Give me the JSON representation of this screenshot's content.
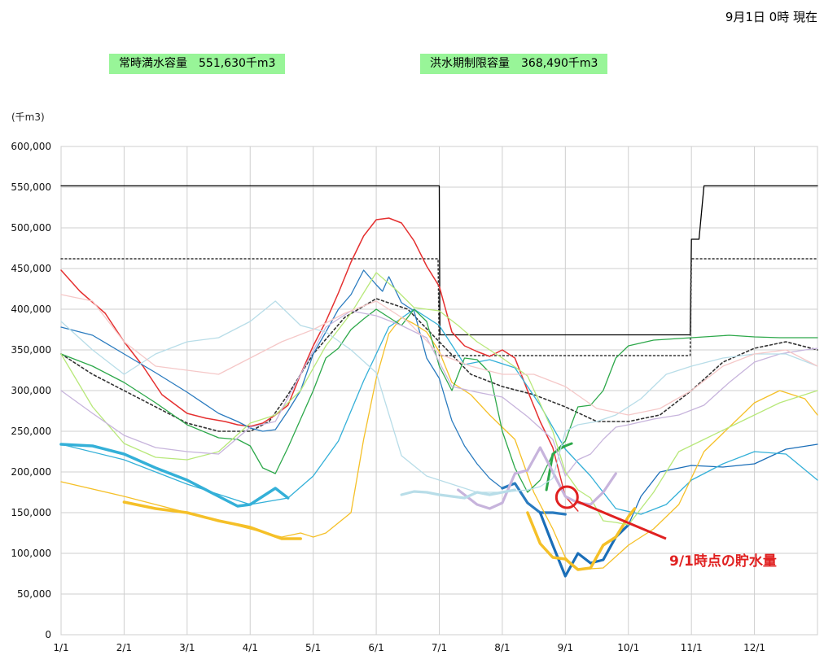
{
  "header": {
    "timestamp": "9月1日 0時 現在",
    "full_capacity": "常時満水容量　551,630千m3",
    "flood_limit": "洪水期制限容量　368,490千m3"
  },
  "chart_data": {
    "type": "line",
    "unit_label": "(千m3)",
    "ylim": [
      0,
      600000
    ],
    "y_ticks": [
      0,
      50000,
      100000,
      150000,
      200000,
      250000,
      300000,
      350000,
      400000,
      450000,
      500000,
      550000,
      600000
    ],
    "y_tick_labels": [
      "0",
      "50,000",
      "100,000",
      "150,000",
      "200,000",
      "250,000",
      "300,000",
      "350,000",
      "400,000",
      "450,000",
      "500,000",
      "550,000",
      "600,000"
    ],
    "x_tick_labels": [
      "1/1",
      "2/1",
      "3/1",
      "4/1",
      "5/1",
      "6/1",
      "7/1",
      "8/1",
      "9/1",
      "10/1",
      "11/1",
      "12/1"
    ],
    "xlim_months": [
      0,
      12
    ],
    "grid": true,
    "annotation": {
      "text": "9/1時点の貯水量",
      "point": [
        8.0,
        167000
      ],
      "color": "#e02020"
    },
    "series": [
      {
        "color": "#000000",
        "width": 1.3,
        "step": true,
        "x": [
          0,
          6,
          6.01,
          9.98,
          10.0,
          10.12,
          10.2,
          12
        ],
        "values": [
          551630,
          551630,
          368490,
          368490,
          486000,
          486000,
          551630,
          551630
        ]
      },
      {
        "color": "#333333",
        "width": 1.5,
        "dash": "2,3",
        "x": [
          0,
          5.98,
          6.0,
          9.98,
          10.0,
          12
        ],
        "values": [
          462000,
          462000,
          343000,
          343000,
          462000,
          462000
        ]
      },
      {
        "color": "#333333",
        "width": 1.6,
        "dash": "3,3",
        "x": [
          0,
          0.5,
          1,
          1.5,
          2,
          2.5,
          3,
          3.3,
          3.6,
          4,
          4.5,
          5,
          5.5,
          6,
          6.5,
          7,
          7.5,
          8,
          8.5,
          9,
          9.5,
          10,
          10.5,
          11,
          11.5,
          12
        ],
        "values": [
          345000,
          320000,
          300000,
          280000,
          260000,
          250000,
          250000,
          262000,
          295000,
          345000,
          390000,
          413000,
          400000,
          360000,
          320000,
          305000,
          295000,
          280000,
          262000,
          262000,
          270000,
          300000,
          335000,
          352000,
          360000,
          350000
        ]
      },
      {
        "color": "#e53030",
        "width": 1.5,
        "x": [
          0,
          0.3,
          0.7,
          1,
          1.3,
          1.6,
          2,
          2.3,
          2.6,
          2.8,
          3,
          3.2,
          3.4,
          3.6,
          3.8,
          4,
          4.2,
          4.4,
          4.6,
          4.8,
          5,
          5.2,
          5.4,
          5.6,
          5.8,
          6,
          6.2,
          6.4,
          6.6,
          6.8,
          7,
          7.2,
          7.4,
          7.6,
          7.8,
          8.0,
          8.2
        ],
        "values": [
          448000,
          422000,
          395000,
          360000,
          330000,
          295000,
          272000,
          266000,
          262000,
          258000,
          256000,
          260000,
          270000,
          282000,
          320000,
          355000,
          385000,
          420000,
          458000,
          490000,
          510000,
          512000,
          506000,
          484000,
          453000,
          428000,
          372000,
          355000,
          348000,
          342000,
          350000,
          340000,
          300000,
          262000,
          230000,
          170000,
          152000
        ]
      },
      {
        "color": "#2a7bbf",
        "width": 1.3,
        "x": [
          0,
          0.5,
          1,
          1.5,
          2,
          2.5,
          2.8,
          3,
          3.2,
          3.4,
          3.6,
          3.8,
          4,
          4.2,
          4.4,
          4.6,
          4.8,
          5,
          5.1,
          5.2,
          5.4,
          5.6,
          5.8,
          6.0,
          6.2,
          6.4,
          6.6,
          6.8,
          7.0,
          7.2,
          7.4,
          7.6,
          7.8,
          8.0
        ],
        "values": [
          378000,
          368000,
          345000,
          322000,
          298000,
          272000,
          262000,
          254000,
          250000,
          252000,
          275000,
          300000,
          345000,
          372000,
          400000,
          418000,
          448000,
          430000,
          422000,
          440000,
          408000,
          398000,
          340000,
          315000,
          263000,
          232000,
          210000,
          192000,
          180000,
          186000,
          162000,
          150000,
          150000,
          148000
        ]
      },
      {
        "color": "#2a7bbf",
        "width": 3.2,
        "x": [
          7.0,
          7.2,
          7.4,
          7.6,
          7.8,
          8.0
        ],
        "values": [
          180000,
          186000,
          162000,
          150000,
          150000,
          148000
        ]
      },
      {
        "color": "#1a6eb8",
        "width": 3.2,
        "x": [
          7.6,
          7.8,
          8.0,
          8.2,
          8.4,
          8.6,
          8.8,
          9.0
        ],
        "values": [
          150000,
          110000,
          72000,
          100000,
          88000,
          92000,
          120000,
          135000
        ]
      },
      {
        "color": "#1a6eb8",
        "width": 1.3,
        "x": [
          8.8,
          9.0,
          9.2,
          9.5,
          10.0,
          10.5,
          11,
          11.5,
          12
        ],
        "values": [
          120000,
          135000,
          170000,
          200000,
          208000,
          206000,
          210000,
          228000,
          234000
        ]
      },
      {
        "color": "#34b0d8",
        "width": 1.3,
        "x": [
          0,
          1,
          2,
          3,
          3.6,
          4,
          4.4,
          4.8,
          5.2,
          5.6,
          6,
          6.4,
          6.8,
          7.2,
          7.6,
          8.0,
          8.4,
          8.8,
          9.2,
          9.6,
          10,
          10.5,
          11,
          11.5,
          12
        ],
        "values": [
          234000,
          215000,
          185000,
          160000,
          168000,
          195000,
          238000,
          312000,
          378000,
          400000,
          380000,
          332000,
          338000,
          328000,
          282000,
          228000,
          195000,
          155000,
          148000,
          160000,
          190000,
          210000,
          225000,
          222000,
          190000
        ]
      },
      {
        "color": "#34b0d8",
        "width": 3.5,
        "x": [
          0,
          0.5,
          1,
          1.5,
          2,
          2.5,
          2.8,
          3.0,
          3.2,
          3.4,
          3.6
        ],
        "values": [
          234000,
          232000,
          222000,
          205000,
          190000,
          170000,
          158000,
          160000,
          170000,
          180000,
          168000
        ]
      },
      {
        "color": "#f5c028",
        "width": 1.3,
        "x": [
          0,
          1,
          2,
          3,
          3.5,
          3.8,
          4,
          4.2,
          4.6,
          4.8,
          5,
          5.2,
          5.4,
          5.6,
          5.8,
          6.0,
          6.2,
          6.5,
          6.8,
          7.2,
          7.5,
          7.8,
          8.0,
          8.2,
          8.6,
          9.0,
          9.4,
          9.8,
          10.2,
          10.6,
          11,
          11.4,
          11.8,
          12
        ],
        "values": [
          188000,
          170000,
          150000,
          130000,
          120000,
          125000,
          120000,
          125000,
          150000,
          240000,
          315000,
          370000,
          390000,
          382000,
          372000,
          348000,
          310000,
          295000,
          270000,
          240000,
          175000,
          130000,
          95000,
          80000,
          82000,
          110000,
          130000,
          160000,
          225000,
          255000,
          285000,
          300000,
          290000,
          270000
        ]
      },
      {
        "color": "#f5c028",
        "width": 3.5,
        "x": [
          1,
          1.5,
          2,
          2.5,
          3,
          3.5,
          3.8
        ],
        "values": [
          163000,
          155000,
          150000,
          140000,
          132000,
          118000,
          118000
        ]
      },
      {
        "color": "#f5c028",
        "width": 3.5,
        "x": [
          7.4,
          7.6,
          7.8,
          8.0,
          8.2,
          8.4,
          8.6,
          8.8,
          9.0,
          9.1
        ],
        "values": [
          150000,
          112000,
          95000,
          93000,
          80000,
          82000,
          110000,
          120000,
          145000,
          155000
        ]
      },
      {
        "color": "#2da84a",
        "width": 1.3,
        "x": [
          0,
          0.5,
          1,
          1.5,
          2,
          2.5,
          2.8,
          3.0,
          3.2,
          3.4,
          3.6,
          3.8,
          4,
          4.2,
          4.4,
          4.6,
          4.8,
          5.0,
          5.2,
          5.4,
          5.6,
          5.8,
          6.0,
          6.2,
          6.4,
          6.6,
          6.8,
          7.0,
          7.2,
          7.4,
          7.6,
          7.8,
          8.0,
          8.2,
          8.4,
          8.6,
          8.8,
          9.0,
          9.4,
          10.0,
          10.6,
          11.0,
          11.4,
          11.8,
          12
        ],
        "values": [
          345000,
          330000,
          310000,
          285000,
          258000,
          242000,
          240000,
          232000,
          205000,
          198000,
          230000,
          265000,
          300000,
          340000,
          352000,
          375000,
          388000,
          400000,
          390000,
          380000,
          400000,
          385000,
          330000,
          300000,
          340000,
          338000,
          322000,
          250000,
          205000,
          175000,
          190000,
          222000,
          238000,
          280000,
          282000,
          300000,
          340000,
          355000,
          362000,
          365000,
          368000,
          366000,
          365000,
          365000,
          365000
        ]
      },
      {
        "color": "#2da84a",
        "width": 3.0,
        "x": [
          7.7,
          7.8,
          7.9,
          8.0,
          8.1
        ],
        "values": [
          178000,
          222000,
          228000,
          232000,
          235000
        ]
      },
      {
        "color": "#b8e87a",
        "width": 1.3,
        "x": [
          0,
          0.5,
          1,
          1.5,
          2,
          2.5,
          3.0,
          3.4,
          3.8,
          4.2,
          4.6,
          5.0,
          5.3,
          5.6,
          6.0,
          6.3,
          6.6,
          7.0,
          7.4,
          7.8,
          8.0,
          8.2,
          8.4,
          8.6,
          8.8,
          9.0,
          9.4,
          9.8,
          10.2,
          10.6,
          11.0,
          11.4,
          11.8,
          12
        ],
        "values": [
          345000,
          280000,
          235000,
          218000,
          215000,
          225000,
          260000,
          270000,
          300000,
          355000,
          395000,
          445000,
          425000,
          402000,
          398000,
          380000,
          360000,
          340000,
          318000,
          250000,
          200000,
          178000,
          168000,
          140000,
          138000,
          135000,
          175000,
          225000,
          240000,
          255000,
          270000,
          285000,
          295000,
          300000
        ]
      },
      {
        "color": "#c7b4dc",
        "width": 1.3,
        "x": [
          0,
          0.5,
          1,
          1.5,
          2,
          2.5,
          3.0,
          3.4,
          3.8,
          4.2,
          4.6,
          5.0,
          5.4,
          5.8,
          6.2,
          6.6,
          7.0,
          7.4,
          7.8,
          8.0,
          8.2,
          8.4,
          8.6,
          8.8,
          9.0,
          9.4,
          9.8,
          10.2,
          10.6,
          11.0,
          11.4,
          11.8,
          12
        ],
        "values": [
          300000,
          272000,
          245000,
          230000,
          225000,
          222000,
          255000,
          262000,
          320000,
          378000,
          398000,
          392000,
          380000,
          365000,
          305000,
          298000,
          292000,
          268000,
          240000,
          195000,
          215000,
          222000,
          240000,
          255000,
          258000,
          265000,
          270000,
          282000,
          310000,
          335000,
          345000,
          350000,
          352000
        ]
      },
      {
        "color": "#c7b4dc",
        "width": 3.2,
        "x": [
          6.3,
          6.6,
          6.8,
          7.0,
          7.2,
          7.4,
          7.6,
          7.8,
          8.0,
          8.2,
          8.4,
          8.6,
          8.8
        ],
        "values": [
          178000,
          160000,
          155000,
          162000,
          198000,
          202000,
          230000,
          200000,
          170000,
          162000,
          160000,
          175000,
          198000
        ]
      },
      {
        "color": "#b8dde8",
        "width": 1.3,
        "x": [
          0,
          0.5,
          1,
          1.5,
          2,
          2.5,
          3.0,
          3.4,
          3.8,
          4.2,
          4.6,
          5.0,
          5.4,
          5.8,
          6.2,
          6.6,
          7.0,
          7.4,
          7.6,
          7.8,
          8.0,
          8.2,
          8.5,
          8.8,
          9.2,
          9.6,
          10,
          10.5,
          11,
          11.5,
          12
        ],
        "values": [
          385000,
          350000,
          320000,
          345000,
          360000,
          365000,
          385000,
          410000,
          380000,
          372000,
          350000,
          322000,
          220000,
          195000,
          185000,
          175000,
          175000,
          178000,
          182000,
          192000,
          250000,
          258000,
          262000,
          270000,
          290000,
          320000,
          330000,
          340000,
          345000,
          345000,
          330000
        ]
      },
      {
        "color": "#b8dde8",
        "width": 3.2,
        "x": [
          5.4,
          5.6,
          5.8,
          6.0,
          6.2,
          6.4,
          6.6,
          6.8,
          7.0,
          7.2
        ],
        "values": [
          172000,
          176000,
          175000,
          172000,
          170000,
          168000,
          175000,
          172000,
          175000,
          178000
        ]
      },
      {
        "color": "#f5c8c8",
        "width": 1.3,
        "x": [
          0,
          0.5,
          1,
          1.5,
          2,
          2.5,
          3.0,
          3.5,
          4,
          4.5,
          5,
          5.5,
          6,
          6.5,
          7,
          7.5,
          8,
          8.5,
          9,
          9.5,
          10,
          10.5,
          11,
          11.5,
          12
        ],
        "values": [
          418000,
          410000,
          360000,
          330000,
          325000,
          320000,
          340000,
          360000,
          375000,
          395000,
          410000,
          385000,
          345000,
          330000,
          320000,
          320000,
          305000,
          278000,
          270000,
          278000,
          300000,
          330000,
          345000,
          350000,
          330000
        ]
      }
    ]
  }
}
